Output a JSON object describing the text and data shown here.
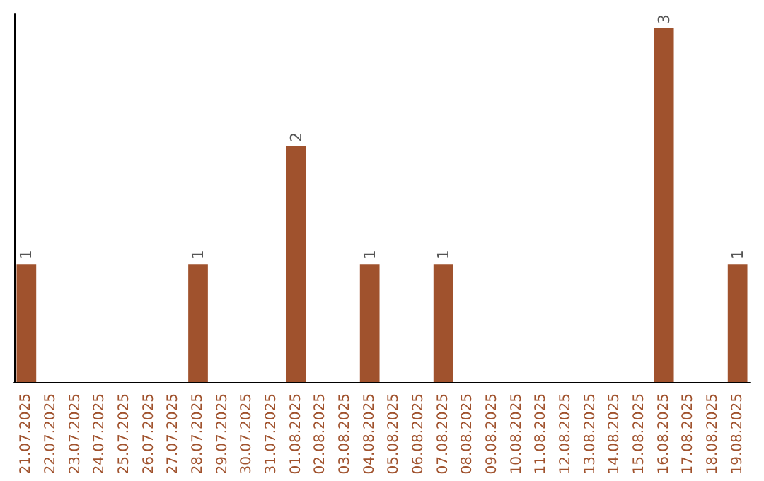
{
  "chart_data": {
    "type": "bar",
    "categories": [
      "21.07.2025",
      "22.07.2025",
      "23.07.2025",
      "24.07.2025",
      "25.07.2025",
      "26.07.2025",
      "27.07.2025",
      "28.07.2025",
      "29.07.2025",
      "30.07.2025",
      "31.07.2025",
      "01.08.2025",
      "02.08.2025",
      "03.08.2025",
      "04.08.2025",
      "05.08.2025",
      "06.08.2025",
      "07.08.2025",
      "08.08.2025",
      "09.08.2025",
      "10.08.2025",
      "11.08.2025",
      "12.08.2025",
      "13.08.2025",
      "14.08.2025",
      "15.08.2025",
      "16.08.2025",
      "17.08.2025",
      "18.08.2025",
      "19.08.2025"
    ],
    "values": [
      1,
      0,
      0,
      0,
      0,
      0,
      0,
      1,
      0,
      0,
      0,
      2,
      0,
      0,
      1,
      0,
      0,
      1,
      0,
      0,
      0,
      0,
      0,
      0,
      0,
      0,
      3,
      0,
      0,
      1
    ],
    "value_labels": [
      "1",
      null,
      null,
      null,
      null,
      null,
      null,
      "1",
      null,
      null,
      null,
      "2",
      null,
      null,
      "1",
      null,
      null,
      "1",
      null,
      null,
      null,
      null,
      null,
      null,
      null,
      null,
      "3",
      null,
      null,
      "1"
    ],
    "color": "#a0522d",
    "tick_labels": "x"
  }
}
